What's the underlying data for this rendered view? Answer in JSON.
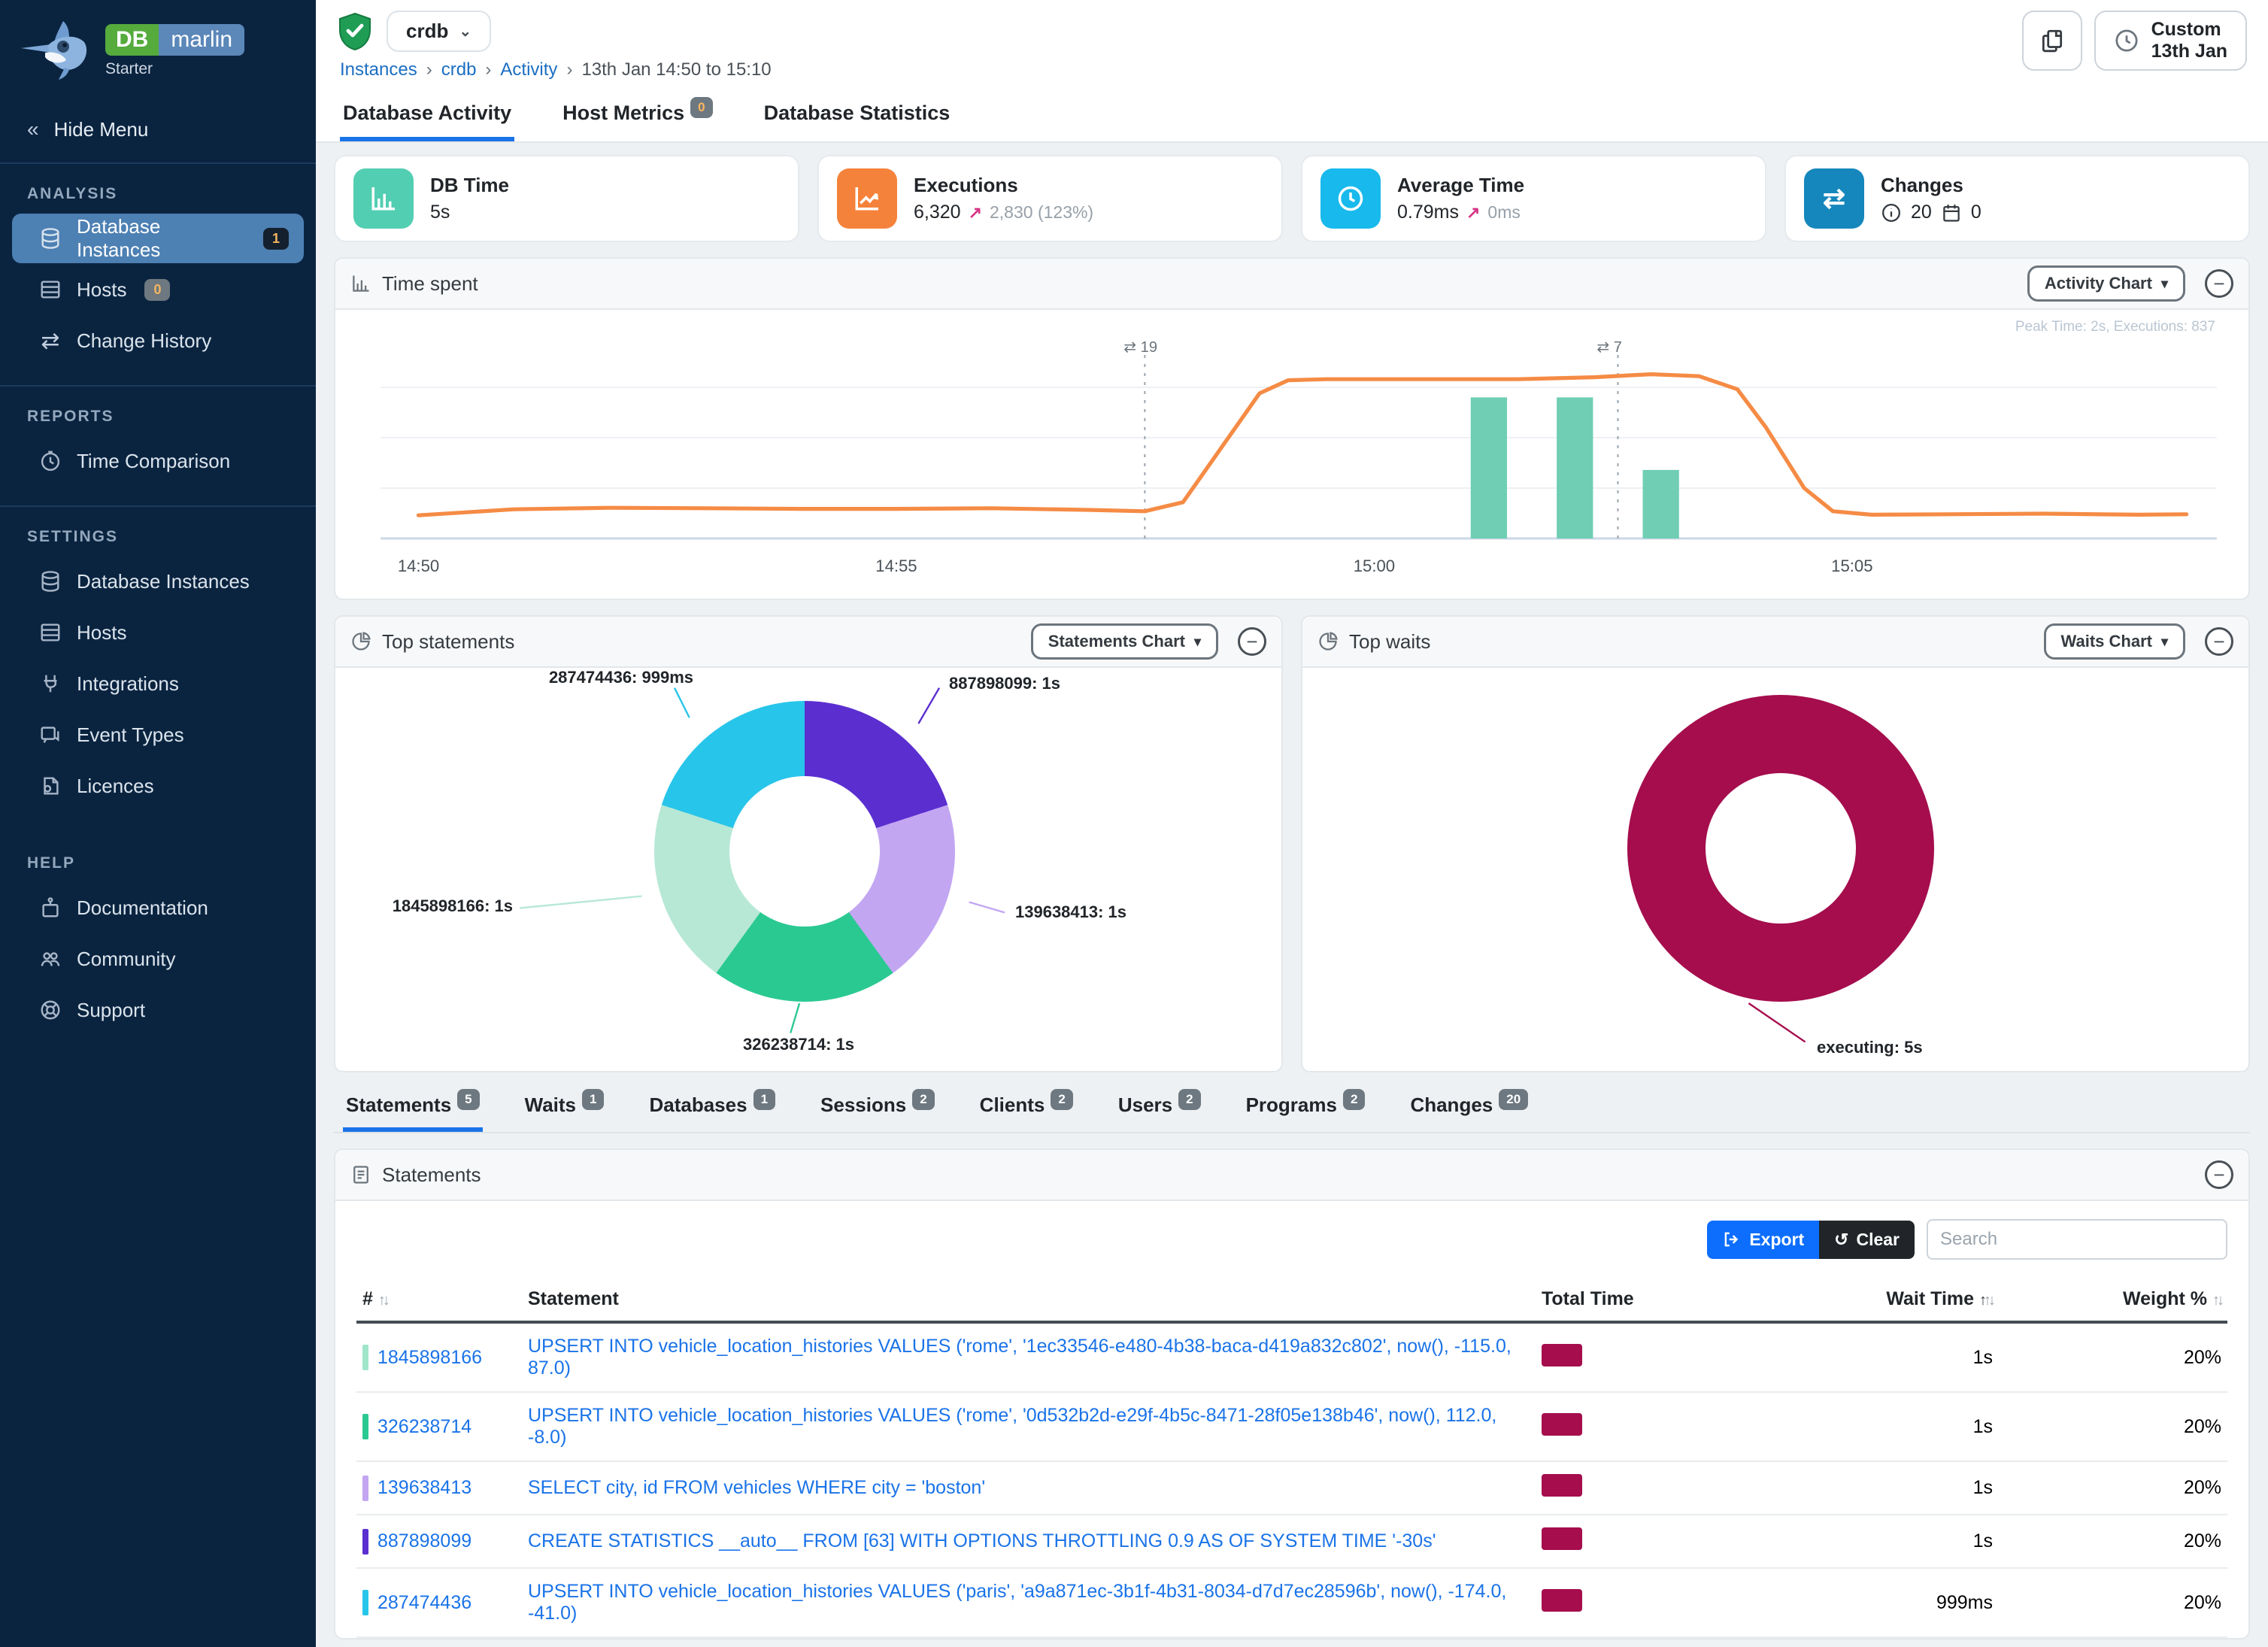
{
  "glyphs": {
    "chevrons": "«",
    "caret": "▾",
    "dropdown": "⌄",
    "minus": "−",
    "up_arrow": "↗",
    "undo": "↺",
    "sort": "↑↓",
    "sort_up": "↑",
    "crumb_sep": "›",
    "swap": "⇄"
  },
  "brand": {
    "db": "DB",
    "name": "marlin",
    "plan": "Starter"
  },
  "sidebar": {
    "hide_menu": "Hide Menu",
    "sections": [
      {
        "title": "ANALYSIS",
        "items": [
          {
            "label": "Database Instances",
            "badge": "1"
          },
          {
            "label": "Hosts",
            "badge": "0"
          },
          {
            "label": "Change History"
          }
        ]
      },
      {
        "title": "REPORTS",
        "items": [
          {
            "label": "Time Comparison"
          }
        ]
      },
      {
        "title": "SETTINGS",
        "items": [
          {
            "label": "Database Instances"
          },
          {
            "label": "Hosts"
          },
          {
            "label": "Integrations"
          },
          {
            "label": "Event Types"
          },
          {
            "label": "Licences"
          }
        ]
      },
      {
        "title": "HELP",
        "items": [
          {
            "label": "Documentation"
          },
          {
            "label": "Community"
          },
          {
            "label": "Support"
          }
        ]
      }
    ]
  },
  "header": {
    "instance": "crdb",
    "breadcrumb": {
      "0": "Instances",
      "1": "crdb",
      "2": "Activity",
      "3": "13th Jan 14:50 to 15:10"
    },
    "time_line1": "Custom",
    "time_line2": "13th Jan"
  },
  "tabs": [
    {
      "label": "Database Activity"
    },
    {
      "label": "Host Metrics",
      "badge": "0"
    },
    {
      "label": "Database Statistics"
    }
  ],
  "cards": [
    {
      "title": "DB Time",
      "value": "5s",
      "color": "#52ceb2"
    },
    {
      "title": "Executions",
      "value": "6,320",
      "delta": "2,830 (123%)",
      "color": "#f5823a"
    },
    {
      "title": "Average Time",
      "value": "0.79ms",
      "delta": "0ms",
      "color": "#18b9ec"
    },
    {
      "title": "Changes",
      "info_count": "20",
      "calendar_count": "0",
      "color": "#1587bd"
    }
  ],
  "time_spent": {
    "title": "Time spent",
    "chart_button": "Activity Chart",
    "annotation": "Peak Time: 2s, Executions: 837",
    "line_color": "#f58b45",
    "bar_color": "#6fceb4",
    "x_ticks": [
      "14:50",
      "14:55",
      "15:00",
      "15:05"
    ],
    "tick_minutes": [
      0,
      5,
      10,
      15
    ],
    "x_domain": [
      0,
      18.5
    ],
    "line_points": [
      [
        0,
        0.115
      ],
      [
        1,
        0.145
      ],
      [
        2,
        0.152
      ],
      [
        3,
        0.15
      ],
      [
        4,
        0.147
      ],
      [
        5,
        0.147
      ],
      [
        6,
        0.15
      ],
      [
        7,
        0.142
      ],
      [
        7.6,
        0.135
      ],
      [
        8.0,
        0.18
      ],
      [
        8.4,
        0.45
      ],
      [
        8.8,
        0.72
      ],
      [
        9.1,
        0.785
      ],
      [
        9.5,
        0.79
      ],
      [
        10.5,
        0.79
      ],
      [
        11.5,
        0.79
      ],
      [
        12.3,
        0.8
      ],
      [
        12.9,
        0.815
      ],
      [
        13.4,
        0.805
      ],
      [
        13.8,
        0.74
      ],
      [
        14.1,
        0.55
      ],
      [
        14.5,
        0.25
      ],
      [
        14.8,
        0.135
      ],
      [
        15.2,
        0.118
      ],
      [
        16,
        0.12
      ],
      [
        17,
        0.123
      ],
      [
        18,
        0.118
      ],
      [
        18.5,
        0.12
      ]
    ],
    "bars": [
      {
        "x": 11.2,
        "h": 0.7
      },
      {
        "x": 12.1,
        "h": 0.7
      },
      {
        "x": 13.0,
        "h": 0.34
      }
    ],
    "events": [
      {
        "x": 7.6,
        "label": "19"
      },
      {
        "x": 12.55,
        "label": "7"
      }
    ]
  },
  "top_statements": {
    "title": "Top statements",
    "chart_button": "Statements Chart",
    "chart_data": {
      "type": "pie",
      "slices": [
        {
          "label": "887898099: 1s",
          "value": 20,
          "color": "#5b2ed0"
        },
        {
          "label": "139638413: 1s",
          "value": 20,
          "color": "#c3a6f2"
        },
        {
          "label": "326238714: 1s",
          "value": 20,
          "color": "#2bc992"
        },
        {
          "label": "1845898166: 1s",
          "value": 20,
          "color": "#b7e8d5"
        },
        {
          "label": "287474436: 999ms",
          "value": 20,
          "color": "#28c5ea"
        }
      ]
    }
  },
  "top_waits": {
    "title": "Top waits",
    "chart_button": "Waits Chart",
    "chart_data": {
      "type": "pie",
      "slices": [
        {
          "label": "executing: 5s",
          "value": 100,
          "color": "#a50d4d"
        }
      ]
    }
  },
  "detail_tabs": [
    {
      "label": "Statements",
      "badge": "5"
    },
    {
      "label": "Waits",
      "badge": "1"
    },
    {
      "label": "Databases",
      "badge": "1"
    },
    {
      "label": "Sessions",
      "badge": "2"
    },
    {
      "label": "Clients",
      "badge": "2"
    },
    {
      "label": "Users",
      "badge": "2"
    },
    {
      "label": "Programs",
      "badge": "2"
    },
    {
      "label": "Changes",
      "badge": "20"
    }
  ],
  "statements_panel": {
    "title": "Statements",
    "export_label": "Export",
    "clear_label": "Clear",
    "search_placeholder": "Search",
    "columns": {
      "id": "#",
      "statement": "Statement",
      "total_time": "Total Time",
      "wait_time": "Wait Time",
      "weight": "Weight %"
    },
    "total_time_bar_color": "#a50d4d",
    "rows": [
      {
        "id": "1845898166",
        "color": "#9fe6cb",
        "statement": "UPSERT INTO vehicle_location_histories VALUES ('rome', '1ec33546-e480-4b38-baca-d419a832c802', now(), -115.0, 87.0)",
        "wait": "1s",
        "weight": "20%"
      },
      {
        "id": "326238714",
        "color": "#2bc992",
        "statement": "UPSERT INTO vehicle_location_histories VALUES ('rome', '0d532b2d-e29f-4b5c-8471-28f05e138b46', now(), 112.0, -8.0)",
        "wait": "1s",
        "weight": "20%"
      },
      {
        "id": "139638413",
        "color": "#c3a6f2",
        "statement": "SELECT city, id FROM vehicles WHERE city = 'boston'",
        "wait": "1s",
        "weight": "20%"
      },
      {
        "id": "887898099",
        "color": "#5b2ed0",
        "statement": "CREATE STATISTICS __auto__ FROM [63] WITH OPTIONS THROTTLING 0.9 AS OF SYSTEM TIME '-30s'",
        "wait": "1s",
        "weight": "20%"
      },
      {
        "id": "287474436",
        "color": "#28c5ea",
        "statement": "UPSERT INTO vehicle_location_histories VALUES ('paris', 'a9a871ec-3b1f-4b31-8034-d7d7ec28596b', now(), -174.0, -41.0)",
        "wait": "999ms",
        "weight": "20%"
      }
    ]
  }
}
